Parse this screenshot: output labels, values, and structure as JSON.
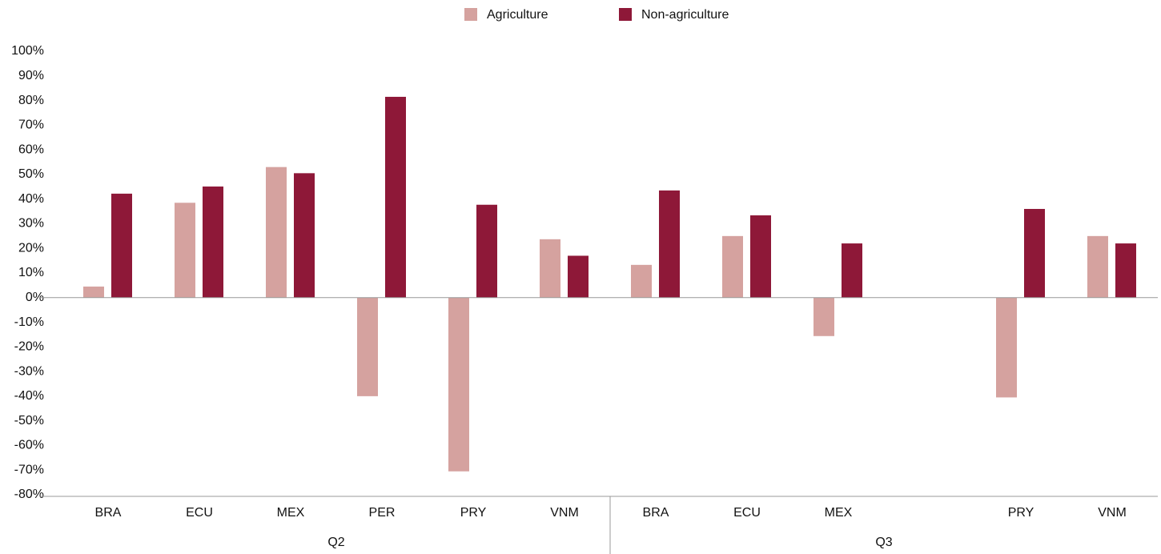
{
  "chart_data": {
    "type": "bar",
    "groups": [
      {
        "name": "Q2",
        "categories": [
          "BRA",
          "ECU",
          "MEX",
          "PER",
          "PRY",
          "VNM"
        ]
      },
      {
        "name": "Q3",
        "categories": [
          "BRA",
          "ECU",
          "MEX",
          null,
          "PRY",
          "VNM"
        ]
      }
    ],
    "series": [
      {
        "name": "Agriculture",
        "color": "#d5a29f",
        "values": [
          4.5,
          38.5,
          53,
          -40,
          -70.5,
          23.7,
          13.3,
          25,
          -15.6,
          null,
          -40.5,
          25
        ]
      },
      {
        "name": "Non-agriculture",
        "color": "#8e1838",
        "values": [
          42.2,
          45.1,
          50.5,
          81.5,
          37.7,
          17,
          43.5,
          33.4,
          22,
          null,
          36,
          22
        ]
      }
    ],
    "ylim": [
      -80,
      100
    ],
    "yticks": [
      {
        "value": -80,
        "label": "-80%"
      },
      {
        "value": -70,
        "label": "-70%"
      },
      {
        "value": -60,
        "label": "-60%"
      },
      {
        "value": -50,
        "label": "-50%"
      },
      {
        "value": -40,
        "label": "-40%"
      },
      {
        "value": -30,
        "label": "-30%"
      },
      {
        "value": -20,
        "label": "-20%"
      },
      {
        "value": -10,
        "label": "-10%"
      },
      {
        "value": 0,
        "label": "0%"
      },
      {
        "value": 10,
        "label": "10%"
      },
      {
        "value": 20,
        "label": "20%"
      },
      {
        "value": 30,
        "label": "30%"
      },
      {
        "value": 40,
        "label": "40%"
      },
      {
        "value": 50,
        "label": "50%"
      },
      {
        "value": 60,
        "label": "60%"
      },
      {
        "value": 70,
        "label": "70%"
      },
      {
        "value": 80,
        "label": "80%"
      },
      {
        "value": 90,
        "label": "90%"
      },
      {
        "value": 100,
        "label": "100%"
      }
    ],
    "grid": false,
    "legend": "top"
  }
}
